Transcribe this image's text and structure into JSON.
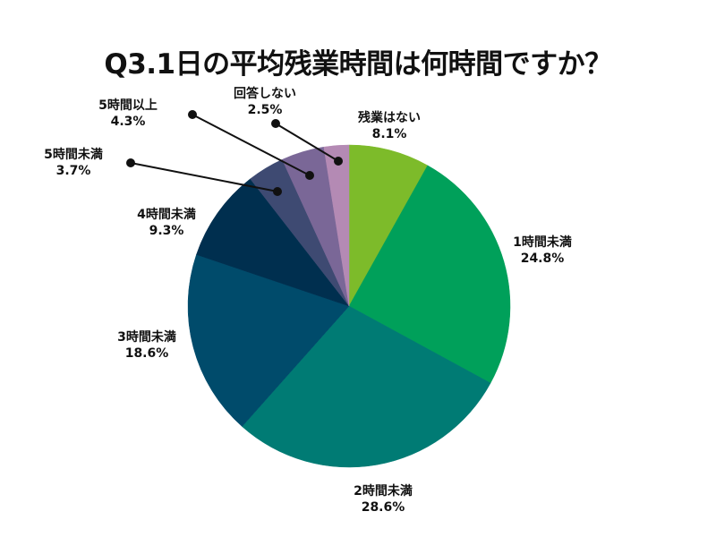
{
  "chart_data": {
    "type": "pie",
    "title": "Q3.1日の平均残業時間は何時間ですか？",
    "start": "top",
    "direction": "clockwise",
    "slices": [
      {
        "label": "残業はない",
        "value": 8.1,
        "value_label": "8.1%",
        "color": "#7dbb2a"
      },
      {
        "label": "1時間未満",
        "value": 24.8,
        "value_label": "24.8%",
        "color": "#00a05a"
      },
      {
        "label": "2時間未満",
        "value": 28.6,
        "value_label": "28.6%",
        "color": "#007b74"
      },
      {
        "label": "3時間未満",
        "value": 18.6,
        "value_label": "18.6%",
        "color": "#004b6b"
      },
      {
        "label": "4時間未満",
        "value": 9.3,
        "value_label": "9.3%",
        "color": "#002f4f"
      },
      {
        "label": "5時間未満",
        "value": 3.7,
        "value_label": "3.7%",
        "color": "#3e4a72"
      },
      {
        "label": "5時間以上",
        "value": 4.3,
        "value_label": "4.3%",
        "color": "#7a6797"
      },
      {
        "label": "回答しない",
        "value": 2.5,
        "value_label": "2.5%",
        "color": "#b48ab4"
      }
    ]
  }
}
